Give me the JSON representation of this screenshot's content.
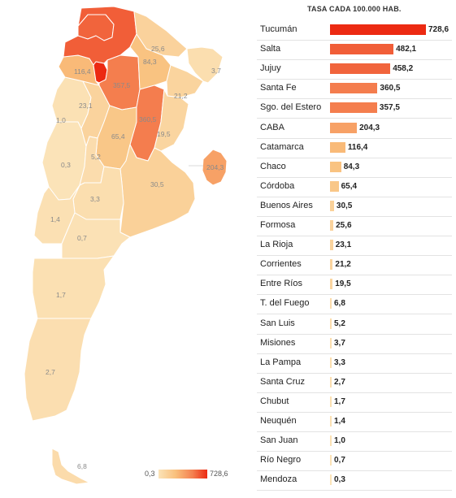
{
  "table_title": "TASA CADA 100.000 HAB.",
  "legend": {
    "min": "0,3",
    "max": "728,6"
  },
  "scale": {
    "min": 0.3,
    "max": 728.6,
    "colors": [
      "#fbe3b8",
      "#f9c07c",
      "#f48050",
      "#ec2a12"
    ]
  },
  "rows": [
    {
      "name": "Tucumán",
      "value": 728.6,
      "label": "728,6"
    },
    {
      "name": "Salta",
      "value": 482.1,
      "label": "482,1"
    },
    {
      "name": "Jujuy",
      "value": 458.2,
      "label": "458,2"
    },
    {
      "name": "Santa Fe",
      "value": 360.5,
      "label": "360,5"
    },
    {
      "name": "Sgo. del Estero",
      "value": 357.5,
      "label": "357,5"
    },
    {
      "name": "CABA",
      "value": 204.3,
      "label": "204,3"
    },
    {
      "name": "Catamarca",
      "value": 116.4,
      "label": "116,4"
    },
    {
      "name": "Chaco",
      "value": 84.3,
      "label": "84,3"
    },
    {
      "name": "Córdoba",
      "value": 65.4,
      "label": "65,4"
    },
    {
      "name": "Buenos Aires",
      "value": 30.5,
      "label": "30,5"
    },
    {
      "name": "Formosa",
      "value": 25.6,
      "label": "25,6"
    },
    {
      "name": "La Rioja",
      "value": 23.1,
      "label": "23,1"
    },
    {
      "name": "Corrientes",
      "value": 21.2,
      "label": "21,2"
    },
    {
      "name": "Entre Ríos",
      "value": 19.5,
      "label": "19,5"
    },
    {
      "name": "T. del Fuego",
      "value": 6.8,
      "label": "6,8"
    },
    {
      "name": "San Luis",
      "value": 5.2,
      "label": "5,2"
    },
    {
      "name": "Misiones",
      "value": 3.7,
      "label": "3,7"
    },
    {
      "name": "La Pampa",
      "value": 3.3,
      "label": "3,3"
    },
    {
      "name": "Santa Cruz",
      "value": 2.7,
      "label": "2,7"
    },
    {
      "name": "Chubut",
      "value": 1.7,
      "label": "1,7"
    },
    {
      "name": "Neuquén",
      "value": 1.4,
      "label": "1,4"
    },
    {
      "name": "San Juan",
      "value": 1.0,
      "label": "1,0"
    },
    {
      "name": "Río Negro",
      "value": 0.7,
      "label": "0,7"
    },
    {
      "name": "Mendoza",
      "value": 0.3,
      "label": "0,3"
    }
  ]
}
